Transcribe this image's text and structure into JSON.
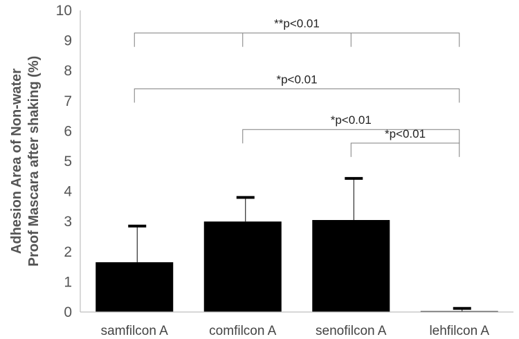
{
  "chart_data": {
    "type": "bar",
    "categories": [
      "samfilcon A",
      "comfilcon A",
      "senofilcon A",
      "lehfilcon A"
    ],
    "values": [
      1.65,
      3.0,
      3.05,
      0.03
    ],
    "error_upper": [
      2.85,
      3.8,
      4.43,
      0.12
    ],
    "ylabel_lines": [
      "Adhesion Area of Non-water",
      "Proof Mascara after shaking (%)"
    ],
    "xlabel": "",
    "ylim": [
      0,
      10
    ],
    "yticks": [
      0,
      1,
      2,
      3,
      4,
      5,
      6,
      7,
      8,
      9,
      10
    ],
    "bar_color": "#000000",
    "grid": false,
    "significance": [
      {
        "label": "**p<0.01",
        "level": 9.25,
        "from": 0,
        "to": 3,
        "mid_ticks": [
          1,
          2
        ]
      },
      {
        "label": "*p<0.01",
        "level": 7.4,
        "from": 0,
        "to": 3
      },
      {
        "label": "*p<0.01",
        "level": 6.05,
        "from": 1,
        "to": 3
      },
      {
        "label": "*p<0.01",
        "level": 5.6,
        "from": 2,
        "to": 3
      }
    ]
  }
}
